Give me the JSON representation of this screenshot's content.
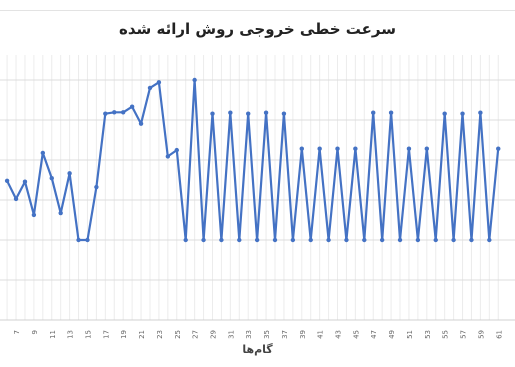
{
  "chart_data": {
    "type": "line",
    "title": "سرعت خطی خروجی روش ارائه شده",
    "xlabel": "گام‌ها",
    "ylabel": "",
    "grid": true,
    "legend": "none",
    "x_tick_labels": [
      "7",
      "9",
      "11",
      "13",
      "15",
      "17",
      "19",
      "21",
      "23",
      "25",
      "27",
      "29",
      "31",
      "33",
      "35",
      "37",
      "39",
      "41",
      "43",
      "45",
      "47",
      "49",
      "51",
      "53",
      "55",
      "57",
      "59",
      "61"
    ],
    "ylim": [
      0,
      1
    ],
    "series": [
      {
        "color": "#4472C4",
        "x": [
          6,
          7,
          8,
          9,
          10,
          11,
          12,
          13,
          14,
          15,
          16,
          17,
          18,
          19,
          20,
          21,
          22,
          23,
          24,
          25,
          26,
          27,
          28,
          29,
          30,
          31,
          32,
          33,
          34,
          35,
          36,
          37,
          38,
          39,
          40,
          41,
          42,
          43,
          44,
          45,
          46,
          47,
          48,
          49,
          50,
          51,
          52,
          53,
          54,
          55,
          56,
          57,
          58,
          59,
          60,
          61
        ],
        "values": [
          0.566,
          0.488,
          0.562,
          0.419,
          0.686,
          0.577,
          0.427,
          0.598,
          0.311,
          0.311,
          0.539,
          0.855,
          0.861,
          0.861,
          0.885,
          0.812,
          0.966,
          0.99,
          0.671,
          0.698,
          0.311,
          1.0,
          0.311,
          0.855,
          0.311,
          0.859,
          0.311,
          0.855,
          0.311,
          0.859,
          0.311,
          0.855,
          0.311,
          0.704,
          0.311,
          0.704,
          0.311,
          0.704,
          0.311,
          0.704,
          0.311,
          0.859,
          0.311,
          0.859,
          0.311,
          0.704,
          0.311,
          0.704,
          0.311,
          0.855,
          0.311,
          0.855,
          0.311,
          0.859,
          0.311,
          0.704
        ]
      }
    ]
  }
}
